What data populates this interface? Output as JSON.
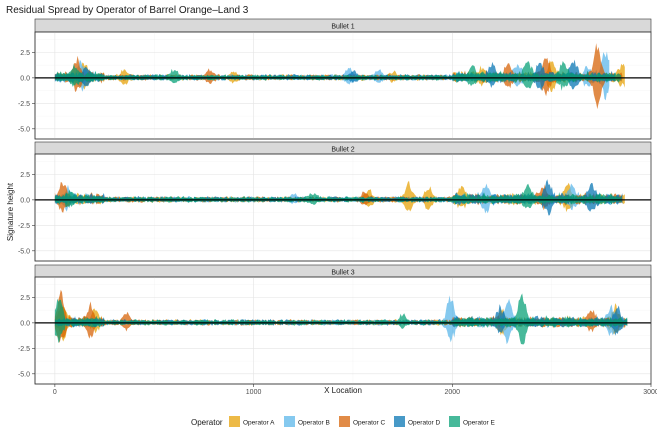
{
  "chart_data": {
    "type": "area",
    "title": "Residual Spread by Operator of Barrel Orange–Land 3",
    "xlabel": "X Location",
    "ylabel": "Signature height",
    "xlim": [
      -100,
      3000
    ],
    "ylim": [
      -6,
      4.5
    ],
    "x_ticks": [
      0,
      1000,
      2000,
      3000
    ],
    "x_tick_labels": [
      "0",
      "1000",
      "2000",
      "3000"
    ],
    "y_ticks": [
      -5,
      -2.5,
      0,
      2.5
    ],
    "y_tick_labels": [
      "-5.0",
      "-2.5",
      "0.0",
      "2.5"
    ],
    "grid": true,
    "reference_line_y": 0,
    "legend": {
      "title": "Operator",
      "position": "bottom",
      "entries": [
        {
          "name": "Operator A",
          "color": "#E69F00"
        },
        {
          "name": "Operator B",
          "color": "#56B4E9"
        },
        {
          "name": "Operator C",
          "color": "#D55E00"
        },
        {
          "name": "Operator D",
          "color": "#0072B2"
        },
        {
          "name": "Operator E",
          "color": "#009E73"
        }
      ]
    },
    "panels": [
      {
        "label": "Bullet 1",
        "series": [
          {
            "name": "Operator A",
            "x_range": [
              0,
              2870
            ],
            "spread_peaks": [
              [
                150,
                1.4
              ],
              [
                350,
                1.0
              ],
              [
                900,
                0.6
              ],
              [
                1700,
                0.6
              ],
              [
                2150,
                0.8
              ],
              [
                2500,
                1.9
              ],
              [
                2860,
                1.2
              ]
            ]
          },
          {
            "name": "Operator B",
            "x_range": [
              0,
              2790
            ],
            "spread_peaks": [
              [
                130,
                1.5
              ],
              [
                1480,
                1.0
              ],
              [
                1630,
                0.8
              ],
              [
                2330,
                1.2
              ],
              [
                2680,
                1.0
              ],
              [
                2770,
                3.2
              ]
            ]
          },
          {
            "name": "Operator C",
            "x_range": [
              0,
              2860
            ],
            "spread_peaks": [
              [
                110,
                2.0
              ],
              [
                780,
                0.8
              ],
              [
                2280,
                1.2
              ],
              [
                2470,
                2.4
              ],
              [
                2730,
                4.5
              ]
            ]
          },
          {
            "name": "Operator D",
            "x_range": [
              0,
              2820
            ],
            "spread_peaks": [
              [
                160,
                1.2
              ],
              [
                1500,
                0.6
              ],
              [
                2200,
                1.4
              ],
              [
                2440,
                1.6
              ],
              [
                2610,
                1.8
              ]
            ]
          },
          {
            "name": "Operator E",
            "x_range": [
              0,
              2850
            ],
            "spread_peaks": [
              [
                100,
                1.0
              ],
              [
                600,
                0.8
              ],
              [
                2100,
                1.0
              ],
              [
                2380,
                1.8
              ],
              [
                2560,
                1.6
              ]
            ]
          }
        ]
      },
      {
        "label": "Bullet 2",
        "series": [
          {
            "name": "Operator A",
            "x_range": [
              0,
              2870
            ],
            "spread_peaks": [
              [
                1580,
                1.0
              ],
              [
                1780,
                2.0
              ],
              [
                1880,
                1.5
              ],
              [
                2050,
                1.0
              ],
              [
                2580,
                1.6
              ]
            ]
          },
          {
            "name": "Operator B",
            "x_range": [
              0,
              2850
            ],
            "spread_peaks": [
              [
                60,
                1.0
              ],
              [
                1200,
                0.5
              ],
              [
                2170,
                1.6
              ],
              [
                2600,
                1.4
              ]
            ]
          },
          {
            "name": "Operator C",
            "x_range": [
              0,
              2860
            ],
            "spread_peaks": [
              [
                40,
                1.6
              ],
              [
                1560,
                0.8
              ],
              [
                2460,
                1.2
              ]
            ]
          },
          {
            "name": "Operator D",
            "x_range": [
              0,
              2860
            ],
            "spread_peaks": [
              [
                2480,
                2.2
              ],
              [
                2700,
                1.6
              ]
            ]
          },
          {
            "name": "Operator E",
            "x_range": [
              0,
              2850
            ],
            "spread_peaks": [
              [
                80,
                0.8
              ],
              [
                1300,
                0.6
              ],
              [
                2380,
                1.4
              ]
            ]
          }
        ]
      },
      {
        "label": "Bullet 3",
        "series": [
          {
            "name": "Operator A",
            "x_range": [
              0,
              2880
            ],
            "spread_peaks": [
              [
                40,
                2.2
              ],
              [
                200,
                1.2
              ],
              [
                2250,
                1.4
              ],
              [
                2820,
                1.6
              ]
            ]
          },
          {
            "name": "Operator B",
            "x_range": [
              0,
              2880
            ],
            "spread_peaks": [
              [
                1990,
                3.2
              ],
              [
                2280,
                2.8
              ],
              [
                2800,
                1.6
              ]
            ]
          },
          {
            "name": "Operator C",
            "x_range": [
              0,
              2880
            ],
            "spread_peaks": [
              [
                30,
                3.5
              ],
              [
                180,
                2.0
              ],
              [
                360,
                1.0
              ],
              [
                2700,
                1.2
              ]
            ]
          },
          {
            "name": "Operator D",
            "x_range": [
              0,
              2880
            ],
            "spread_peaks": [
              [
                2240,
                1.6
              ],
              [
                2830,
                1.6
              ]
            ]
          },
          {
            "name": "Operator E",
            "x_range": [
              0,
              2880
            ],
            "spread_peaks": [
              [
                20,
                2.8
              ],
              [
                1750,
                0.8
              ],
              [
                2350,
                3.6
              ]
            ]
          }
        ]
      }
    ]
  }
}
